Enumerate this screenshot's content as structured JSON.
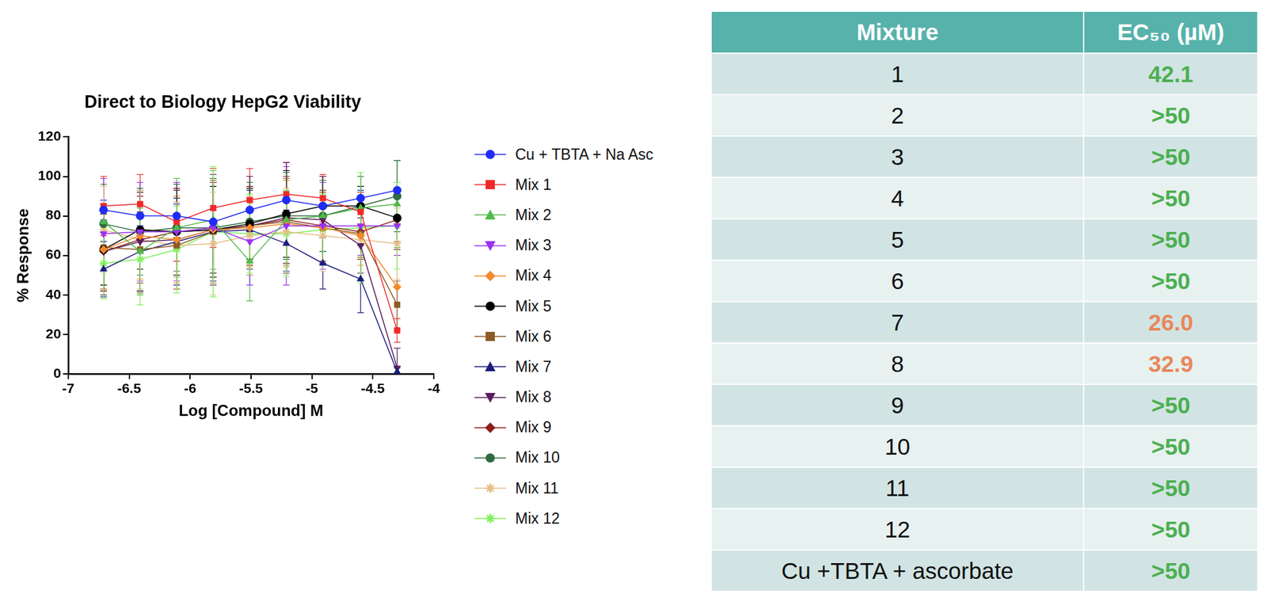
{
  "chart_data": {
    "type": "line",
    "title": "Direct to Biology HepG2 Viability",
    "x_label": "Log [Compound] M",
    "y_label": "% Response",
    "x": [
      -6.71,
      -6.41,
      -6.11,
      -5.81,
      -5.51,
      -5.21,
      -4.91,
      -4.6,
      -4.3
    ],
    "xlim": [
      -7,
      -4
    ],
    "xticks": [
      -7,
      -6.5,
      -6,
      -5.5,
      -5,
      -4.5,
      -4
    ],
    "ylim": [
      0,
      120
    ],
    "yticks": [
      0,
      20,
      40,
      60,
      80,
      100,
      120
    ],
    "grid": false,
    "legend": "right",
    "series": [
      {
        "name": "Cu + TBTA + Na Asc",
        "color": "#1f2cf5",
        "marker": "circle",
        "values": [
          83,
          80,
          80,
          77,
          83,
          88,
          85,
          89,
          93
        ],
        "errors": [
          5,
          5,
          6,
          6,
          6,
          5,
          5,
          4,
          4
        ]
      },
      {
        "name": "Mix 1",
        "color": "#f0282a",
        "marker": "square",
        "values": [
          85,
          86,
          77,
          84,
          88,
          91,
          89,
          82,
          22
        ],
        "errors": [
          15,
          15,
          20,
          20,
          16,
          16,
          12,
          10,
          6
        ]
      },
      {
        "name": "Mix 2",
        "color": "#4fb948",
        "marker": "triangle",
        "values": [
          77,
          62,
          74,
          78,
          57,
          78,
          80,
          84,
          86
        ],
        "errors": [
          22,
          22,
          25,
          25,
          20,
          22,
          18,
          18,
          22
        ]
      },
      {
        "name": "Mix 3",
        "color": "#9a32f0",
        "marker": "triangle-down",
        "values": [
          71,
          72,
          72,
          74,
          67,
          75,
          75,
          75,
          75
        ],
        "errors": [
          28,
          25,
          25,
          25,
          22,
          30,
          22,
          15,
          15
        ]
      },
      {
        "name": "Mix 4",
        "color": "#f28a2a",
        "marker": "diamond",
        "values": [
          63,
          70,
          68,
          73,
          74,
          76,
          74,
          70,
          44
        ],
        "errors": [
          20,
          22,
          22,
          24,
          20,
          22,
          18,
          15,
          22
        ]
      },
      {
        "name": "Mix 5",
        "color": "#000000",
        "marker": "circle",
        "values": [
          63,
          73,
          72,
          73,
          76,
          81,
          85,
          85,
          79
        ],
        "errors": [
          18,
          20,
          22,
          22,
          18,
          22,
          15,
          10,
          12
        ]
      },
      {
        "name": "Mix 6",
        "color": "#8c5b26",
        "marker": "square",
        "values": [
          64,
          63,
          65,
          72,
          75,
          77,
          74,
          71,
          35
        ],
        "errors": [
          22,
          22,
          22,
          26,
          20,
          22,
          18,
          12,
          12
        ]
      },
      {
        "name": "Mix 7",
        "color": "#1b1d7e",
        "marker": "triangle",
        "values": [
          53,
          62,
          67,
          72,
          73,
          66,
          56,
          48,
          1
        ],
        "errors": [
          14,
          20,
          22,
          25,
          20,
          14,
          13,
          17,
          2
        ]
      },
      {
        "name": "Mix 8",
        "color": "#5a1e5c",
        "marker": "triangle-down",
        "values": [
          62,
          67,
          68,
          73,
          75,
          79,
          78,
          65,
          3
        ],
        "errors": [
          22,
          25,
          25,
          28,
          25,
          28,
          22,
          14,
          10
        ]
      },
      {
        "name": "Mix 9",
        "color": "#8e1c1c",
        "marker": "diamond",
        "values": [
          62,
          68,
          72,
          73,
          75,
          78,
          75,
          72,
          78
        ],
        "errors": [
          20,
          22,
          22,
          24,
          20,
          22,
          18,
          14,
          15
        ]
      },
      {
        "name": "Mix 10",
        "color": "#2f6b3f",
        "marker": "circle",
        "values": [
          76,
          72,
          74,
          74,
          77,
          80,
          80,
          85,
          90
        ],
        "errors": [
          20,
          22,
          22,
          25,
          20,
          22,
          18,
          15,
          18
        ]
      },
      {
        "name": "Mix 11",
        "color": "#e6bf88",
        "marker": "star",
        "values": [
          73,
          68,
          65,
          66,
          70,
          72,
          70,
          68,
          66
        ],
        "errors": [
          22,
          25,
          22,
          26,
          20,
          22,
          18,
          20,
          18
        ]
      },
      {
        "name": "Mix 12",
        "color": "#7df25d",
        "marker": "star",
        "values": [
          56,
          58,
          63,
          72,
          71,
          71,
          73,
          74,
          75
        ],
        "errors": [
          18,
          23,
          22,
          33,
          20,
          22,
          18,
          28,
          22
        ]
      }
    ]
  },
  "table": {
    "header": [
      "Mixture",
      "EC₅₀ (µM)"
    ],
    "rows": [
      {
        "cells": [
          "1",
          "42.1"
        ],
        "color": "#4caf50"
      },
      {
        "cells": [
          "2",
          ">50"
        ],
        "color": "#4caf50"
      },
      {
        "cells": [
          "3",
          ">50"
        ],
        "color": "#4caf50"
      },
      {
        "cells": [
          "4",
          ">50"
        ],
        "color": "#4caf50"
      },
      {
        "cells": [
          "5",
          ">50"
        ],
        "color": "#4caf50"
      },
      {
        "cells": [
          "6",
          ">50"
        ],
        "color": "#4caf50"
      },
      {
        "cells": [
          "7",
          "26.0"
        ],
        "color": "#e9875a"
      },
      {
        "cells": [
          "8",
          "32.9"
        ],
        "color": "#e9875a"
      },
      {
        "cells": [
          "9",
          ">50"
        ],
        "color": "#4caf50"
      },
      {
        "cells": [
          "10",
          ">50"
        ],
        "color": "#4caf50"
      },
      {
        "cells": [
          "11",
          ">50"
        ],
        "color": "#4caf50"
      },
      {
        "cells": [
          "12",
          ">50"
        ],
        "color": "#4caf50"
      },
      {
        "cells": [
          "Cu +TBTA + ascorbate",
          ">50"
        ],
        "color": "#4caf50"
      }
    ]
  }
}
